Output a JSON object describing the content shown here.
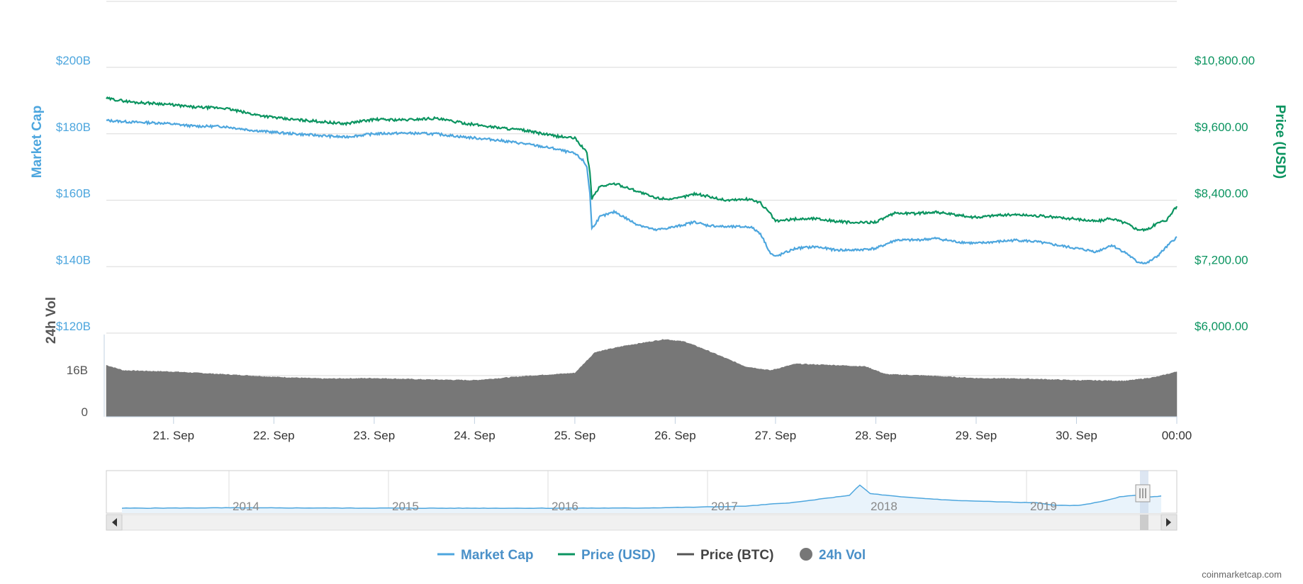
{
  "colors": {
    "market_cap": "#4da6de",
    "price_usd": "#0b9460",
    "price_btc": "#555555",
    "volume": "#777777",
    "grid": "#e0e0e0",
    "navigator_fill": "#e9f3fb",
    "navigator_line": "#4da6de",
    "legend_market_cap": "#4a90c8",
    "legend_price_usd": "#4a90c8",
    "legend_price_btc": "#444444",
    "legend_volume": "#4a90c8"
  },
  "chart_data": {
    "type": "line",
    "y_left": {
      "label": "Market Cap",
      "ticks": [
        "$200B",
        "$180B",
        "$160B",
        "$140B",
        "$120B"
      ],
      "range": [
        120,
        200
      ],
      "unit": "B USD"
    },
    "y_right": {
      "label": "Price (USD)",
      "ticks": [
        "$10,800.00",
        "$9,600.00",
        "$8,400.00",
        "$7,200.00",
        "$6,000.00"
      ],
      "range": [
        6000,
        10800
      ]
    },
    "volume_axis": {
      "label": "24h Vol",
      "ticks": [
        "16B",
        "0"
      ]
    },
    "x_ticks": [
      "21. Sep",
      "22. Sep",
      "23. Sep",
      "24. Sep",
      "25. Sep",
      "26. Sep",
      "27. Sep",
      "28. Sep",
      "29. Sep",
      "30. Sep",
      "00:00"
    ],
    "x_range_days": [
      20.33,
      31.0
    ],
    "series": [
      {
        "name": "Market Cap",
        "unit": "B",
        "points": [
          [
            20.33,
            184.0
          ],
          [
            20.6,
            183.5
          ],
          [
            20.9,
            183.2
          ],
          [
            21.2,
            182.3
          ],
          [
            21.5,
            182.2
          ],
          [
            21.8,
            181.0
          ],
          [
            22.1,
            180.2
          ],
          [
            22.4,
            179.6
          ],
          [
            22.7,
            179.0
          ],
          [
            23.0,
            180.0
          ],
          [
            23.3,
            180.2
          ],
          [
            23.6,
            180.0
          ],
          [
            23.9,
            179.0
          ],
          [
            24.2,
            178.2
          ],
          [
            24.5,
            177.0
          ],
          [
            24.8,
            175.5
          ],
          [
            25.0,
            174.0
          ],
          [
            25.08,
            172.0
          ],
          [
            25.12,
            170.0
          ],
          [
            25.15,
            162.0
          ],
          [
            25.17,
            151.5
          ],
          [
            25.25,
            155.0
          ],
          [
            25.4,
            156.5
          ],
          [
            25.6,
            153.0
          ],
          [
            25.8,
            151.0
          ],
          [
            26.0,
            152.0
          ],
          [
            26.2,
            153.5
          ],
          [
            26.3,
            152.5
          ],
          [
            26.5,
            152.0
          ],
          [
            26.75,
            152.0
          ],
          [
            26.85,
            150.0
          ],
          [
            26.95,
            144.0
          ],
          [
            27.0,
            143.0
          ],
          [
            27.2,
            145.5
          ],
          [
            27.4,
            146.0
          ],
          [
            27.6,
            145.0
          ],
          [
            27.8,
            145.0
          ],
          [
            28.0,
            145.5
          ],
          [
            28.2,
            148.0
          ],
          [
            28.4,
            148.0
          ],
          [
            28.6,
            148.5
          ],
          [
            28.8,
            147.5
          ],
          [
            29.0,
            147.0
          ],
          [
            29.2,
            147.5
          ],
          [
            29.4,
            148.0
          ],
          [
            29.6,
            147.5
          ],
          [
            29.8,
            146.5
          ],
          [
            30.0,
            145.5
          ],
          [
            30.2,
            144.5
          ],
          [
            30.35,
            146.5
          ],
          [
            30.5,
            144.0
          ],
          [
            30.6,
            141.5
          ],
          [
            30.7,
            141.0
          ],
          [
            30.8,
            143.0
          ],
          [
            30.9,
            146.0
          ],
          [
            31.0,
            149.0
          ]
        ]
      },
      {
        "name": "Price (USD)",
        "unit": "USD",
        "points": [
          [
            20.33,
            10238
          ],
          [
            20.6,
            10170
          ],
          [
            20.9,
            10140
          ],
          [
            21.2,
            10080
          ],
          [
            21.5,
            10065
          ],
          [
            21.8,
            9950
          ],
          [
            22.1,
            9870
          ],
          [
            22.4,
            9830
          ],
          [
            22.7,
            9780
          ],
          [
            23.0,
            9860
          ],
          [
            23.3,
            9850
          ],
          [
            23.6,
            9880
          ],
          [
            23.9,
            9790
          ],
          [
            24.2,
            9720
          ],
          [
            24.5,
            9660
          ],
          [
            24.8,
            9560
          ],
          [
            25.0,
            9520
          ],
          [
            25.08,
            9350
          ],
          [
            25.12,
            9250
          ],
          [
            25.15,
            8900
          ],
          [
            25.17,
            8430
          ],
          [
            25.25,
            8650
          ],
          [
            25.4,
            8700
          ],
          [
            25.6,
            8580
          ],
          [
            25.8,
            8440
          ],
          [
            26.0,
            8420
          ],
          [
            26.2,
            8520
          ],
          [
            26.3,
            8480
          ],
          [
            26.5,
            8400
          ],
          [
            26.75,
            8420
          ],
          [
            26.85,
            8350
          ],
          [
            26.95,
            8150
          ],
          [
            27.0,
            8020
          ],
          [
            27.2,
            8060
          ],
          [
            27.4,
            8070
          ],
          [
            27.6,
            8020
          ],
          [
            27.8,
            7990
          ],
          [
            28.0,
            8010
          ],
          [
            28.2,
            8170
          ],
          [
            28.4,
            8160
          ],
          [
            28.6,
            8190
          ],
          [
            28.8,
            8130
          ],
          [
            29.0,
            8090
          ],
          [
            29.2,
            8130
          ],
          [
            29.4,
            8140
          ],
          [
            29.6,
            8120
          ],
          [
            29.8,
            8090
          ],
          [
            30.0,
            8060
          ],
          [
            30.2,
            8020
          ],
          [
            30.35,
            8070
          ],
          [
            30.5,
            7980
          ],
          [
            30.6,
            7880
          ],
          [
            30.7,
            7860
          ],
          [
            30.8,
            7980
          ],
          [
            30.9,
            8050
          ],
          [
            31.0,
            8290
          ]
        ]
      },
      {
        "name": "24h Vol",
        "unit": "B",
        "points": [
          [
            20.33,
            19.0
          ],
          [
            20.5,
            17.0
          ],
          [
            21.0,
            16.5
          ],
          [
            21.5,
            15.5
          ],
          [
            22.0,
            14.5
          ],
          [
            22.5,
            13.8
          ],
          [
            23.0,
            14.0
          ],
          [
            23.5,
            13.5
          ],
          [
            24.0,
            13.2
          ],
          [
            24.5,
            14.8
          ],
          [
            25.0,
            16.0
          ],
          [
            25.2,
            24.0
          ],
          [
            25.5,
            26.5
          ],
          [
            25.9,
            29.0
          ],
          [
            26.1,
            28.0
          ],
          [
            26.3,
            25.0
          ],
          [
            26.7,
            18.5
          ],
          [
            26.95,
            17.0
          ],
          [
            27.2,
            19.5
          ],
          [
            27.6,
            19.0
          ],
          [
            27.9,
            18.5
          ],
          [
            28.1,
            15.5
          ],
          [
            28.5,
            15.0
          ],
          [
            29.0,
            14.0
          ],
          [
            29.5,
            13.8
          ],
          [
            30.0,
            13.2
          ],
          [
            30.5,
            13.0
          ],
          [
            30.8,
            14.5
          ],
          [
            31.0,
            16.5
          ]
        ]
      }
    ],
    "navigator": {
      "labels": [
        "2014",
        "2015",
        "2016",
        "2017",
        "2018",
        "2019"
      ]
    },
    "grid": true,
    "legend_placement": "bottom"
  },
  "legend": [
    {
      "label": "Market Cap",
      "swatch": "line"
    },
    {
      "label": "Price (USD)",
      "swatch": "line"
    },
    {
      "label": "Price (BTC)",
      "swatch": "line"
    },
    {
      "label": "24h Vol",
      "swatch": "circle"
    }
  ],
  "credit": "coinmarketcap.com"
}
